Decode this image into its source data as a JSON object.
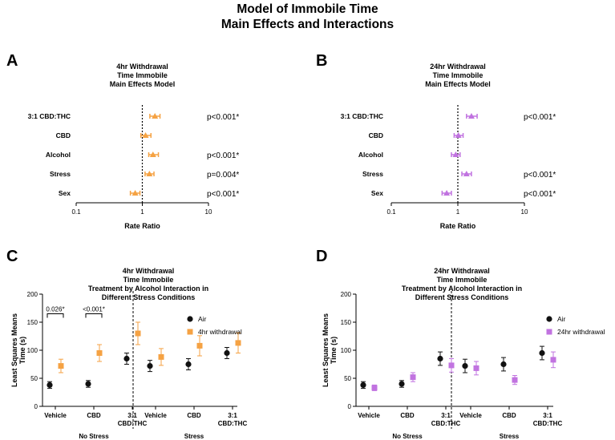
{
  "figure": {
    "title_line1": "Model of Immobile Time",
    "title_line2": "Main Effects and Interactions"
  },
  "colors": {
    "withdrawal_4hr": "#F5A243",
    "withdrawal_24hr": "#C173E0",
    "air": "#111111",
    "axis": "#000000"
  },
  "chart_data": [
    {
      "panel": "A",
      "type": "scatter",
      "subtype": "forest-plot",
      "title": [
        "4hr Withdrawal",
        "Time Immobile",
        "Main Effects Model"
      ],
      "xlabel": "Rate Ratio",
      "xscale": "log",
      "xlim": [
        0.1,
        10
      ],
      "xticks": [
        "0.1",
        "1",
        "10"
      ],
      "reference_line": 1,
      "marker": "triangle",
      "color_key": "withdrawal_4hr",
      "rows": [
        {
          "label": "3:1 CBD:THC",
          "estimate": 1.55,
          "ci": [
            1.3,
            1.85
          ],
          "p": "p<0.001*"
        },
        {
          "label": "CBD",
          "estimate": 1.12,
          "ci": [
            0.95,
            1.35
          ],
          "p": ""
        },
        {
          "label": "Alcohol",
          "estimate": 1.45,
          "ci": [
            1.25,
            1.75
          ],
          "p": "p<0.001*"
        },
        {
          "label": "Stress",
          "estimate": 1.28,
          "ci": [
            1.1,
            1.5
          ],
          "p": "p=0.004*"
        },
        {
          "label": "Sex",
          "estimate": 0.78,
          "ci": [
            0.66,
            0.92
          ],
          "p": "p<0.001*"
        }
      ]
    },
    {
      "panel": "B",
      "type": "scatter",
      "subtype": "forest-plot",
      "title": [
        "24hr Withdrawal",
        "Time Immobile",
        "Main Effects Model"
      ],
      "xlabel": "Rate Ratio",
      "xscale": "log",
      "xlim": [
        0.1,
        10
      ],
      "xticks": [
        "0.1",
        "1",
        "10"
      ],
      "reference_line": 1,
      "marker": "triangle",
      "color_key": "withdrawal_24hr",
      "rows": [
        {
          "label": "3:1 CBD:THC",
          "estimate": 1.6,
          "ci": [
            1.35,
            1.95
          ],
          "p": "p<0.001*"
        },
        {
          "label": "CBD",
          "estimate": 1.02,
          "ci": [
            0.88,
            1.2
          ],
          "p": ""
        },
        {
          "label": "Alcohol",
          "estimate": 0.93,
          "ci": [
            0.8,
            1.08
          ],
          "p": ""
        },
        {
          "label": "Stress",
          "estimate": 1.35,
          "ci": [
            1.15,
            1.6
          ],
          "p": "p<0.001*"
        },
        {
          "label": "Sex",
          "estimate": 0.68,
          "ci": [
            0.58,
            0.8
          ],
          "p": "p<0.001*"
        }
      ]
    },
    {
      "panel": "C",
      "type": "scatter",
      "subtype": "interaction-plot",
      "title": [
        "4hr Withdrawal",
        "Time Immobile",
        "Treatment by Alcohol Interaction in",
        "Different Stress Conditions"
      ],
      "ylabel": [
        "Least Squares Means",
        "Time (s)"
      ],
      "ylim": [
        0,
        200
      ],
      "yticks": [
        0,
        50,
        100,
        150,
        200
      ],
      "groups": [
        "No Stress",
        "Stress"
      ],
      "categories": [
        "Vehicle",
        "CBD",
        "3:1 CBD:THC",
        "Vehicle",
        "CBD",
        "3:1 CBD:THC"
      ],
      "category_lines": [
        [
          "Vehicle"
        ],
        [
          "CBD"
        ],
        [
          "3:1",
          "CBD:THC"
        ],
        [
          "Vehicle"
        ],
        [
          "CBD"
        ],
        [
          "3:1",
          "CBD:THC"
        ]
      ],
      "series": [
        {
          "name": "Air",
          "color_key": "air",
          "marker": "circle",
          "values": [
            38,
            40,
            85,
            72,
            75,
            95
          ],
          "err": [
            6,
            6,
            10,
            10,
            10,
            10
          ]
        },
        {
          "name": "4hr withdrawal",
          "color_key": "withdrawal_4hr",
          "marker": "square",
          "values": [
            72,
            95,
            130,
            88,
            108,
            113
          ],
          "err": [
            12,
            15,
            20,
            15,
            18,
            18
          ]
        }
      ],
      "annotations": [
        {
          "text": "0.026*",
          "category_index": 0
        },
        {
          "text": "<0.001*",
          "category_index": 1
        }
      ]
    },
    {
      "panel": "D",
      "type": "scatter",
      "subtype": "interaction-plot",
      "title": [
        "24hr Withdrawal",
        "Time Immobile",
        "Treatment by Alcohol Interaction in",
        "Different Stress Conditions"
      ],
      "ylabel": [
        "Least Squares Means",
        "Time (s)"
      ],
      "ylim": [
        0,
        200
      ],
      "yticks": [
        0,
        50,
        100,
        150,
        200
      ],
      "groups": [
        "No Stress",
        "Stress"
      ],
      "categories": [
        "Vehicle",
        "CBD",
        "3:1 CBD:THC",
        "Vehicle",
        "CBD",
        "3:1 CBD:THC"
      ],
      "category_lines": [
        [
          "Vehicle"
        ],
        [
          "CBD"
        ],
        [
          "3:1",
          "CBD:THC"
        ],
        [
          "Vehicle"
        ],
        [
          "CBD"
        ],
        [
          "3:1",
          "CBD:THC"
        ]
      ],
      "series": [
        {
          "name": "Air",
          "color_key": "air",
          "marker": "circle",
          "values": [
            38,
            40,
            85,
            72,
            75,
            95
          ],
          "err": [
            6,
            6,
            12,
            12,
            12,
            12
          ]
        },
        {
          "name": "24hr withdrawal",
          "color_key": "withdrawal_24hr",
          "marker": "square",
          "values": [
            33,
            52,
            73,
            68,
            47,
            83
          ],
          "err": [
            5,
            8,
            12,
            12,
            8,
            14
          ]
        }
      ],
      "annotations": []
    }
  ]
}
